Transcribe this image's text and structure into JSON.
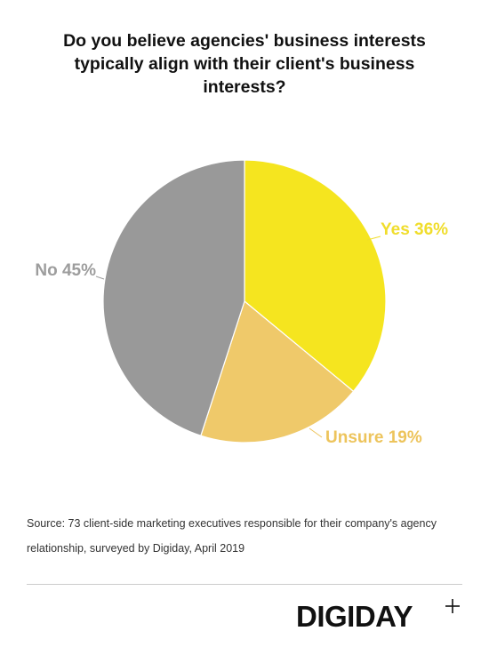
{
  "chart_data": {
    "type": "pie",
    "title": "Do you believe agencies' business interests typically align with their client's business interests?",
    "values": [
      36,
      19,
      45
    ],
    "value_labels": [
      "Yes 36%",
      "Unsure 19%",
      "No 45%"
    ],
    "colors": [
      "#f5e51f",
      "#efc96a",
      "#999999"
    ],
    "label_colors": [
      "#f0dd2c",
      "#edc45c",
      "#9d9d9d"
    ]
  },
  "footer": {
    "source": "Source: 73 client-side marketing executives responsible for their company's agency relationship, surveyed by Digiday, April 2019",
    "logo": "DIGIDAY"
  }
}
